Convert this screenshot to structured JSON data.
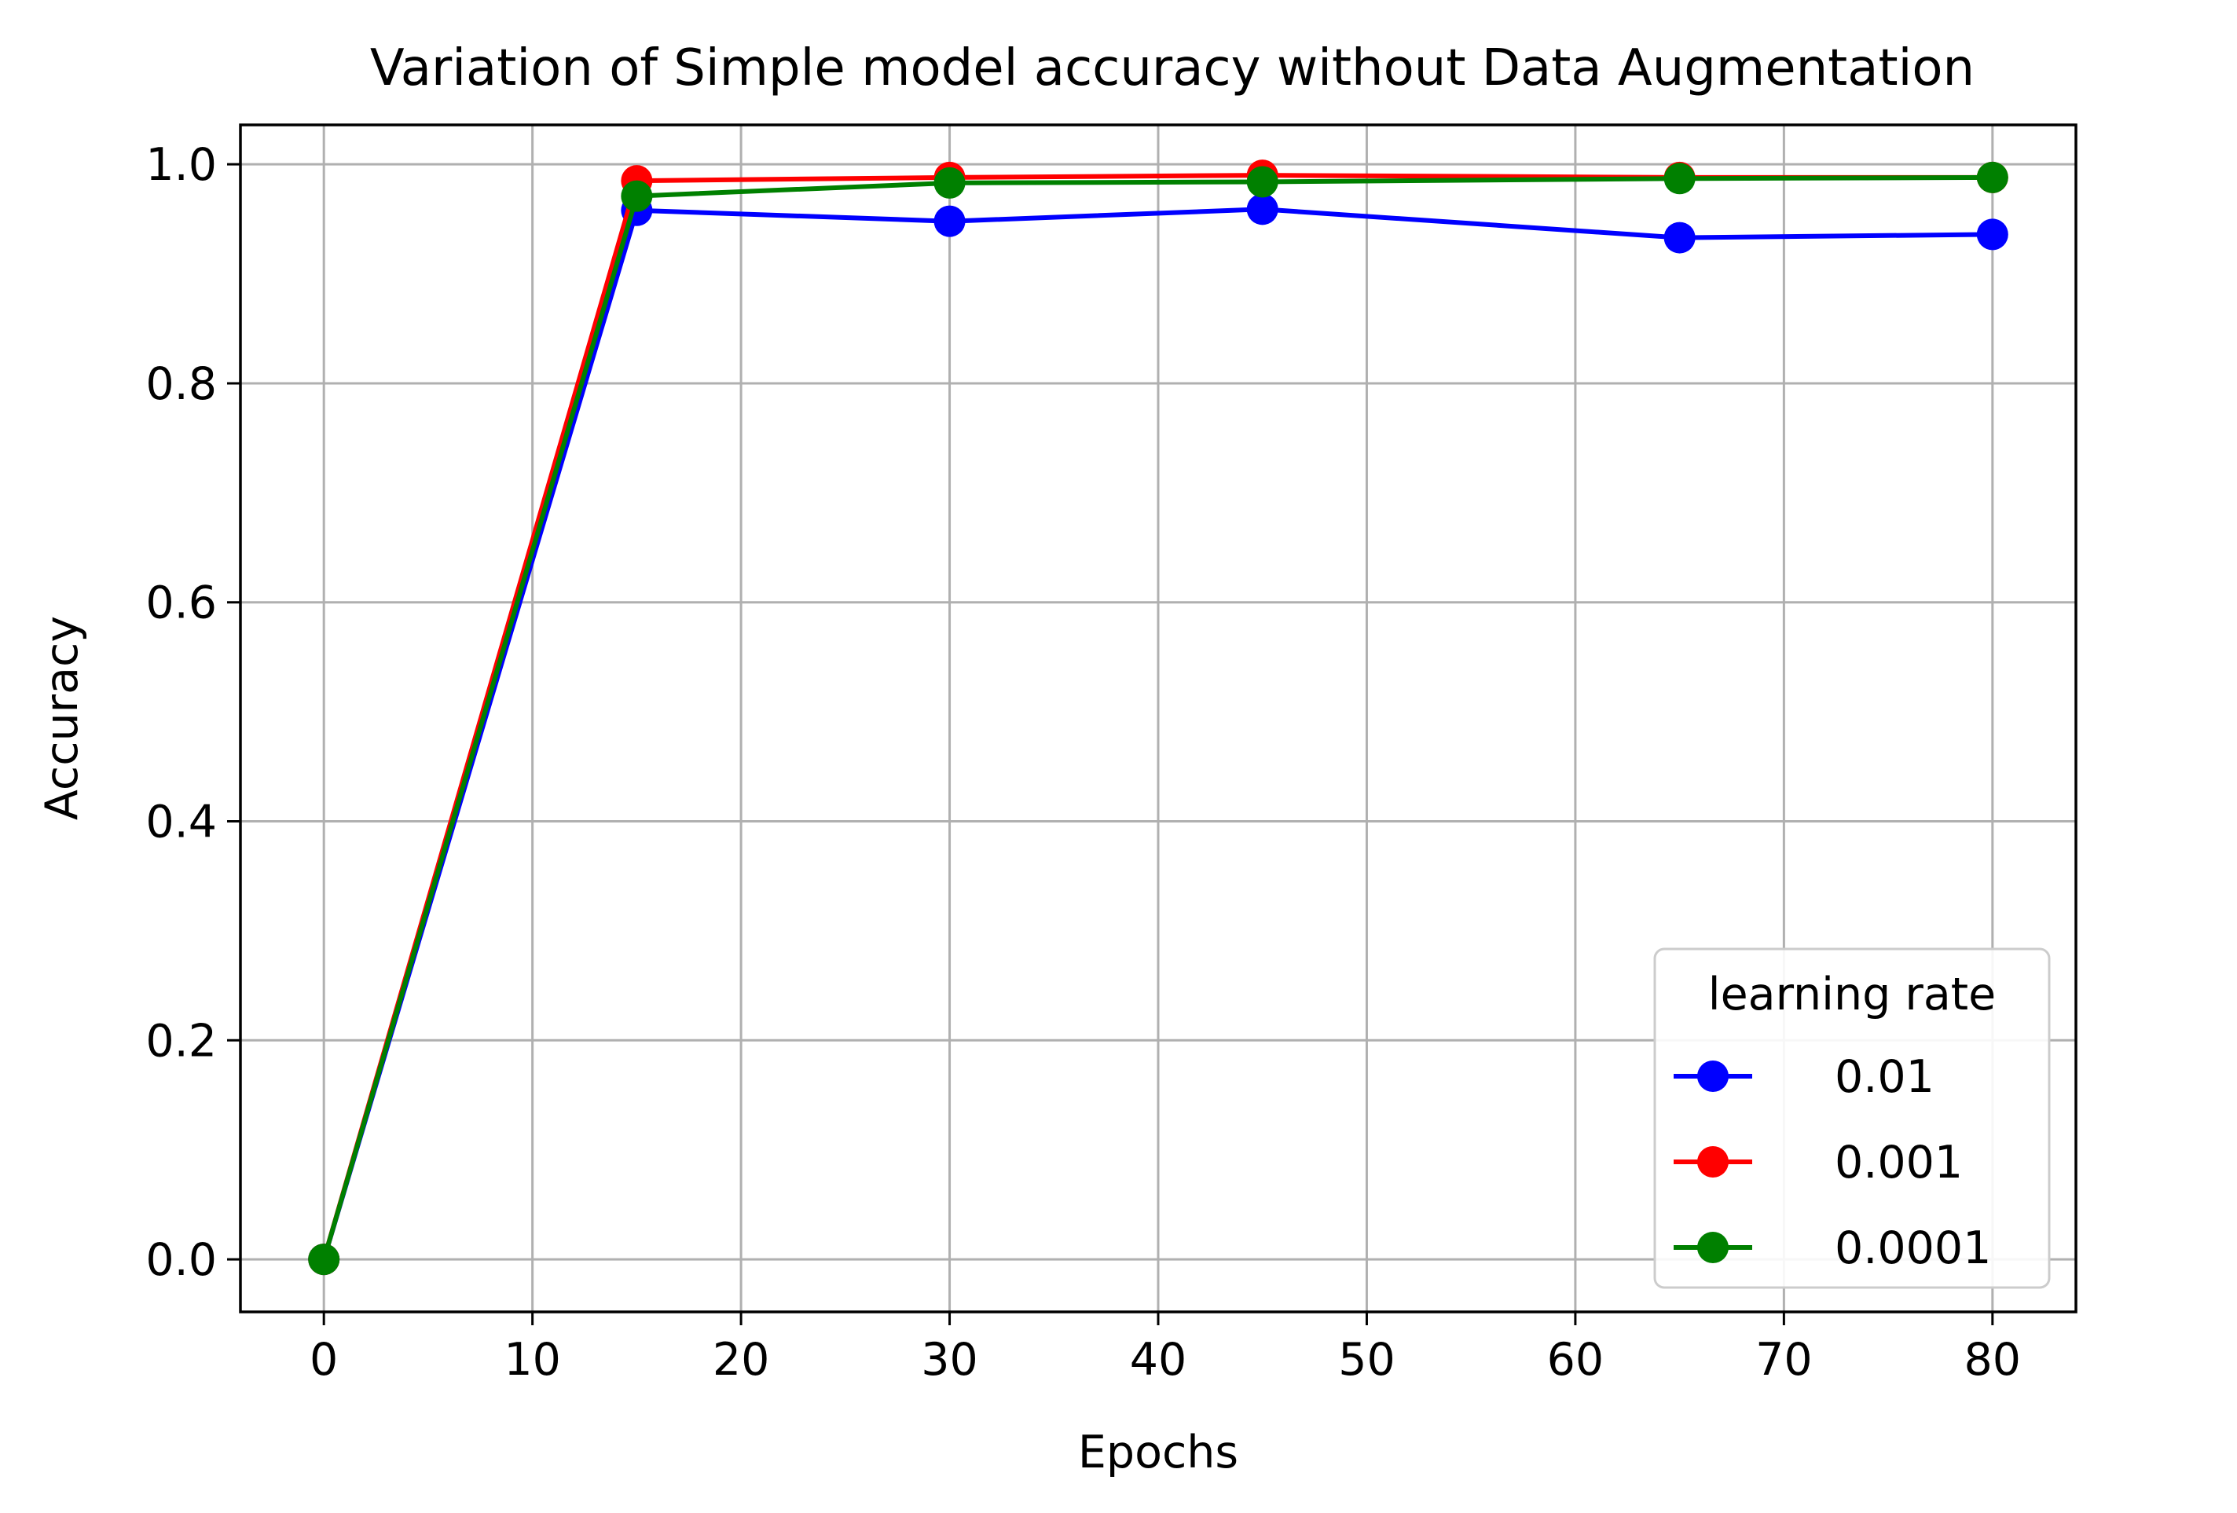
{
  "chart_data": {
    "type": "line",
    "title": "Variation of Simple model accuracy without Data Augmentation",
    "xlabel": "Epochs",
    "ylabel": "Accuracy",
    "x": [
      0,
      15,
      30,
      45,
      65,
      80
    ],
    "xlim": [
      -4,
      84
    ],
    "ylim": [
      -0.048,
      1.036
    ],
    "xticks": [
      0,
      10,
      20,
      30,
      40,
      50,
      60,
      70,
      80
    ],
    "yticks": [
      0.0,
      0.2,
      0.4,
      0.6,
      0.8,
      1.0
    ],
    "xtick_labels": [
      "0",
      "10",
      "20",
      "30",
      "40",
      "50",
      "60",
      "70",
      "80"
    ],
    "ytick_labels": [
      "0.0",
      "0.2",
      "0.4",
      "0.6",
      "0.8",
      "1.0"
    ],
    "grid": true,
    "legend": {
      "title": "learning rate",
      "position": "lower right"
    },
    "series": [
      {
        "name": "0.01",
        "color": "#0000ff",
        "marker": "circle",
        "values": [
          0.0,
          0.958,
          0.948,
          0.959,
          0.933,
          0.936
        ]
      },
      {
        "name": "0.001",
        "color": "#ff0000",
        "marker": "circle",
        "values": [
          0.0,
          0.985,
          0.988,
          0.99,
          0.988,
          0.988
        ]
      },
      {
        "name": "0.0001",
        "color": "#008000",
        "marker": "circle",
        "values": [
          0.0,
          0.971,
          0.983,
          0.984,
          0.987,
          0.988
        ]
      }
    ]
  }
}
